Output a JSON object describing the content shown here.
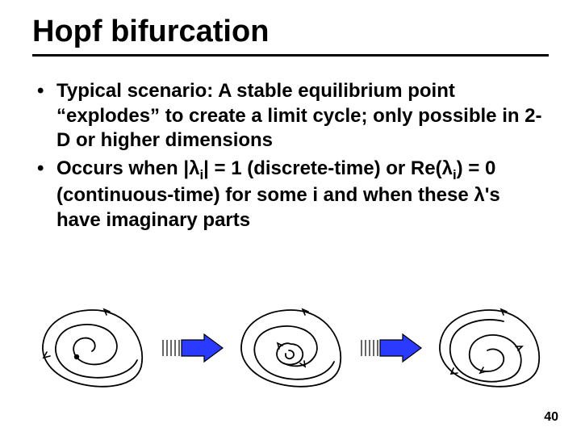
{
  "title": "Hopf bifurcation",
  "bullets": [
    "Typical scenario: A stable equilibrium point “explodes” to create a limit cycle; only possible in 2-D or higher dimensions",
    "Occurs when |λ<span class=\"sub\">i</span>| = 1 (discrete-time) or Re(λ<span class=\"sub\">i</span>) = 0 (continuous-time) for some i and when these λ's have imaginary parts"
  ],
  "page_number": "40",
  "colors": {
    "text": "#000000",
    "background": "#ffffff",
    "arrow_fill": "#2a3bff",
    "arrow_stroke": "#000000",
    "spiral_stroke": "#000000"
  },
  "diagrams": {
    "spiral_stroke_width": 1.6,
    "phase_box_width": 150,
    "phase_box_height": 110,
    "arrow_width": 80,
    "arrow_height": 40
  }
}
